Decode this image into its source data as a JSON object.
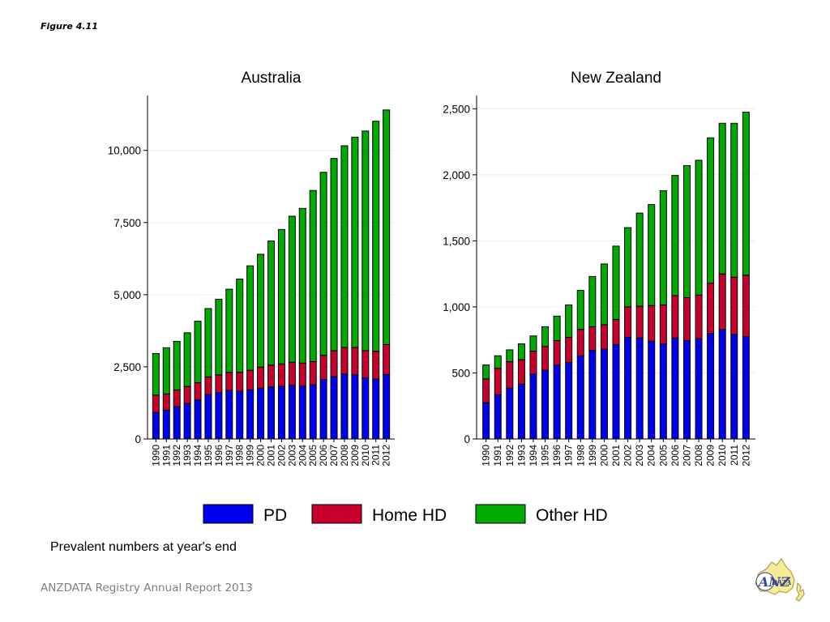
{
  "figure_label": "Figure 4.11",
  "caption": "Prevalent numbers at year's end",
  "footer": "ANZDATA Registry Annual Report 2013",
  "logo": {
    "text_main": "ANZ",
    "text_sub": "DATA"
  },
  "colors": {
    "PD": "#0000ee",
    "Home HD": "#c8002e",
    "Other HD": "#00aa00",
    "grid": "#eeeeee"
  },
  "chart_data": [
    {
      "type": "bar",
      "stacked": true,
      "title": "Australia",
      "xlabel": "",
      "ylabel": "",
      "categories": [
        "1990",
        "1991",
        "1992",
        "1993",
        "1994",
        "1995",
        "1996",
        "1997",
        "1998",
        "1999",
        "2000",
        "2001",
        "2002",
        "2003",
        "2004",
        "2005",
        "2006",
        "2007",
        "2008",
        "2009",
        "2010",
        "2011",
        "2012"
      ],
      "yticks": [
        0,
        2500,
        5000,
        7500,
        10000
      ],
      "ytick_labels": [
        "0",
        "2,500",
        "5,000",
        "7,500",
        "10,000"
      ],
      "ylim": [
        0,
        11900
      ],
      "grid": true,
      "series": [
        {
          "name": "PD",
          "values": [
            920,
            1000,
            1120,
            1230,
            1350,
            1540,
            1600,
            1680,
            1660,
            1700,
            1760,
            1800,
            1820,
            1860,
            1830,
            1880,
            2060,
            2160,
            2250,
            2220,
            2120,
            2080,
            2230
          ]
        },
        {
          "name": "Home HD",
          "values": [
            600,
            560,
            580,
            590,
            600,
            610,
            620,
            630,
            650,
            680,
            730,
            760,
            780,
            800,
            800,
            800,
            840,
            900,
            920,
            950,
            940,
            960,
            1040
          ]
        },
        {
          "name": "Other HD",
          "values": [
            1440,
            1600,
            1680,
            1860,
            2130,
            2370,
            2620,
            2880,
            3230,
            3620,
            3910,
            4300,
            4660,
            5060,
            5360,
            5930,
            6340,
            6660,
            6990,
            7290,
            7610,
            7970,
            8130
          ]
        }
      ]
    },
    {
      "type": "bar",
      "stacked": true,
      "title": "New Zealand",
      "xlabel": "",
      "ylabel": "",
      "categories": [
        "1990",
        "1991",
        "1992",
        "1993",
        "1994",
        "1995",
        "1996",
        "1997",
        "1998",
        "1999",
        "2000",
        "2001",
        "2002",
        "2003",
        "2004",
        "2005",
        "2006",
        "2007",
        "2008",
        "2009",
        "2010",
        "2011",
        "2012"
      ],
      "yticks": [
        0,
        500,
        1000,
        1500,
        2000,
        2500
      ],
      "ytick_labels": [
        "0",
        "500",
        "1,000",
        "1,500",
        "2,000",
        "2,500"
      ],
      "ylim": [
        0,
        2600
      ],
      "grid": true,
      "series": [
        {
          "name": "PD",
          "values": [
            275,
            335,
            385,
            415,
            490,
            520,
            560,
            580,
            630,
            670,
            680,
            715,
            770,
            765,
            740,
            720,
            765,
            745,
            760,
            800,
            830,
            790,
            775
          ]
        },
        {
          "name": "Home HD",
          "values": [
            180,
            200,
            200,
            185,
            175,
            180,
            185,
            190,
            200,
            180,
            185,
            190,
            230,
            240,
            270,
            295,
            320,
            325,
            330,
            380,
            420,
            435,
            465
          ]
        },
        {
          "name": "Other HD",
          "values": [
            105,
            95,
            90,
            120,
            115,
            150,
            185,
            245,
            295,
            380,
            460,
            555,
            600,
            705,
            765,
            865,
            910,
            1000,
            1020,
            1100,
            1140,
            1165,
            1235
          ]
        }
      ]
    }
  ],
  "legend": {
    "placement": "bottom",
    "items": [
      {
        "label": "PD",
        "color_key": "PD"
      },
      {
        "label": "Home HD",
        "color_key": "Home HD"
      },
      {
        "label": "Other HD",
        "color_key": "Other HD"
      }
    ]
  }
}
